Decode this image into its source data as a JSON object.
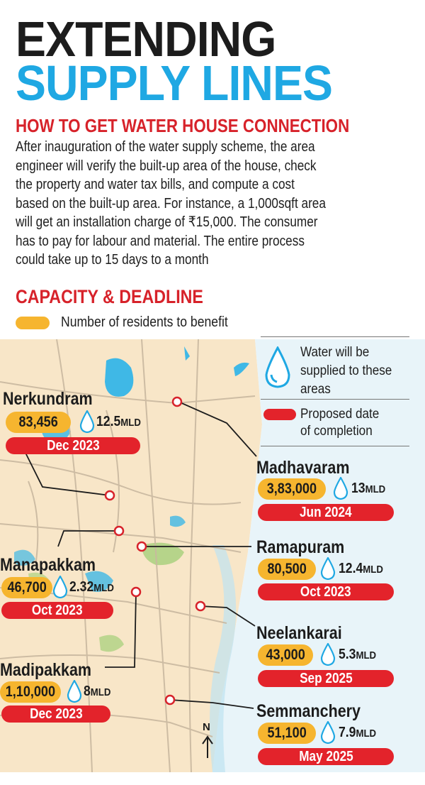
{
  "header": {
    "title_line1": "EXTENDING",
    "title_line2": "SUPPLY LINES"
  },
  "info": {
    "heading": "HOW TO GET WATER HOUSE CONNECTION",
    "lines": [
      "After inauguration of the water supply scheme, the area",
      "engineer will verify the built-up area of the house, check",
      "the property and water tax bills, and compute a cost",
      "based on the built-up area. For instance, a 1,000sqft area",
      "will get an installation charge of ₹15,000. The consumer",
      "has to pay for labour and material. The entire process",
      "could take up to 15 days to a month"
    ]
  },
  "capacity": {
    "heading": "CAPACITY & DEADLINE",
    "legend_residents": "Number of residents to benefit",
    "legend_water": "Water will be supplied to these areas",
    "legend_water_lines": [
      "Water will be",
      "supplied to these",
      "areas"
    ],
    "legend_date_lines": [
      "Proposed date",
      "of completion"
    ]
  },
  "colors": {
    "title_dark": "#1c1c1c",
    "title_blue": "#1fa8e3",
    "accent_red": "#d7222a",
    "pill_yellow": "#f6b52f",
    "pill_red": "#e3232b",
    "map_land": "#f8e6c8",
    "map_sea": "#e2f1f7",
    "road": "#c9b8a0",
    "water": "#3fb8e6",
    "green": "#b6d48a"
  },
  "areas": [
    {
      "name": "Nerkundram",
      "residents": "83,456",
      "supply": "12.5MLD",
      "supply_num": "12.5",
      "supply_unit": "MLD",
      "date": "Dec 2023"
    },
    {
      "name": "Madhavaram",
      "residents": "3,83,000",
      "supply": "13MLD",
      "supply_num": "13",
      "supply_unit": "MLD",
      "date": "Jun 2024"
    },
    {
      "name": "Ramapuram",
      "residents": "80,500",
      "supply": "12.4MLD",
      "supply_num": "12.4",
      "supply_unit": "MLD",
      "date": "Oct 2023"
    },
    {
      "name": "Manapakkam",
      "residents": "46,700",
      "supply": "2.32MLD",
      "supply_num": "2.32",
      "supply_unit": "MLD",
      "date": "Oct 2023"
    },
    {
      "name": "Neelankarai",
      "residents": "43,000",
      "supply": "5.3MLD",
      "supply_num": "5.3",
      "supply_unit": "MLD",
      "date": "Sep 2025"
    },
    {
      "name": "Madipakkam",
      "residents": "1,10,000",
      "supply": "8MLD",
      "supply_num": "8",
      "supply_unit": "MLD",
      "date": "Dec 2023"
    },
    {
      "name": "Semmanchery",
      "residents": "51,100",
      "supply": "7.9MLD",
      "supply_num": "7.9",
      "supply_unit": "MLD",
      "date": "May 2025"
    }
  ],
  "compass": {
    "label": "N"
  }
}
